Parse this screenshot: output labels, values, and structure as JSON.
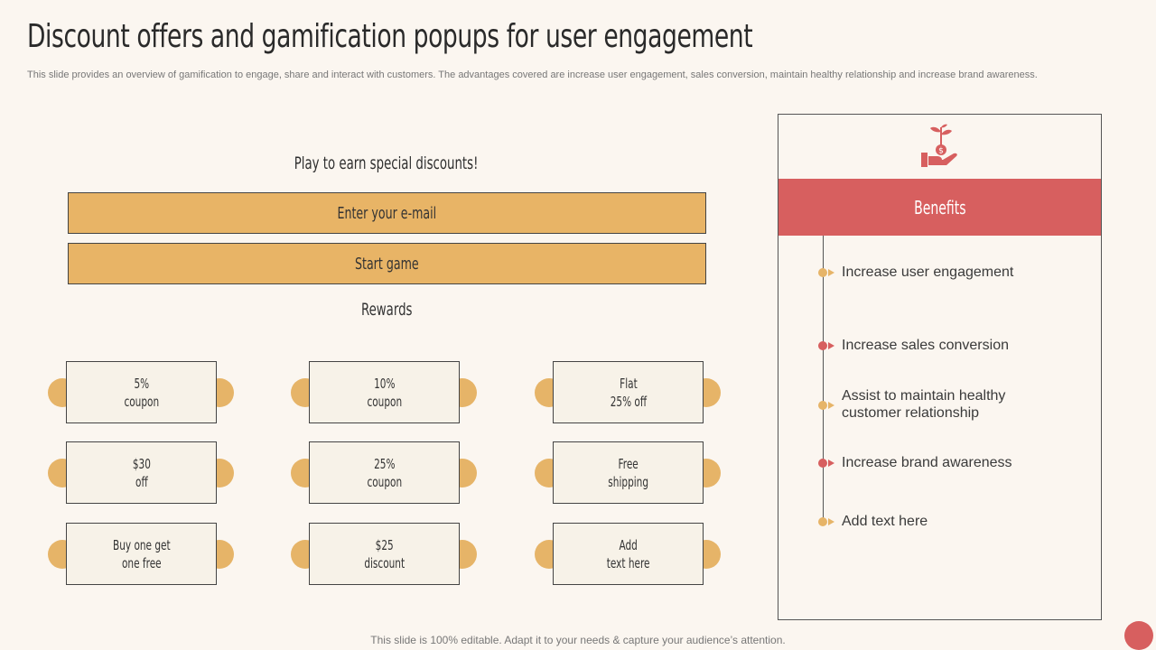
{
  "title": "Discount offers and gamification popups for user engagement",
  "subtitle": "This slide provides an overview of gamification to engage, share and interact with customers. The advantages covered are increase user engagement, sales conversion, maintain healthy relationship and increase brand awareness.",
  "popup": {
    "heading": "Play to earn special discounts!",
    "email_label": "Enter your e-mail",
    "start_label": "Start game",
    "rewards_heading": "Rewards",
    "rewards": [
      {
        "label": "5%\ncoupon"
      },
      {
        "label": "10%\ncoupon"
      },
      {
        "label": "Flat\n25% off"
      },
      {
        "label": "$30\noff"
      },
      {
        "label": "25%\ncoupon"
      },
      {
        "label": "Free\nshipping"
      },
      {
        "label": "Buy one get\none free"
      },
      {
        "label": "$25\ndiscount"
      },
      {
        "label": "Add\ntext here"
      }
    ]
  },
  "benefits": {
    "icon": "hand-money-plant-icon",
    "header": "Benefits",
    "items": [
      {
        "text": "Increase  user engagement",
        "color": "#e6b468"
      },
      {
        "text": "Increase  sales conversion",
        "color": "#d75f5f"
      },
      {
        "text": "Assist to maintain healthy customer relationship",
        "color": "#e6b468"
      },
      {
        "text": "Increase  brand awareness",
        "color": "#d75f5f"
      },
      {
        "text": "Add text here",
        "color": "#e6b468"
      }
    ]
  },
  "footer": "This slide is 100% editable. Adapt it to your needs & capture your audience’s attention.",
  "colors": {
    "accent_orange": "#e8b466",
    "accent_red": "#d75f5f",
    "background": "#fbf6f0"
  }
}
